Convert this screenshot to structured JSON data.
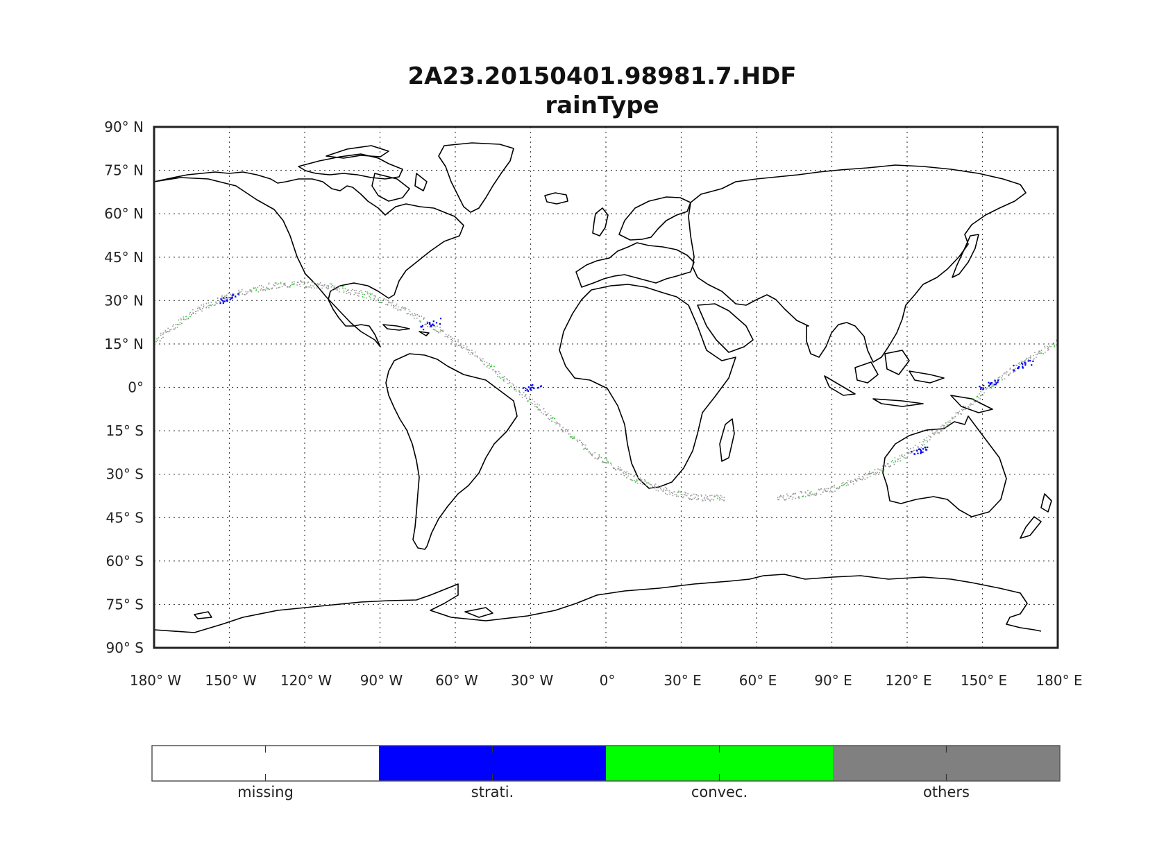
{
  "title": "2A23.20150401.98981.7.HDF",
  "subtitle": "rainType",
  "lat_ticks": [
    "90° N",
    "75° N",
    "60° N",
    "45° N",
    "30° N",
    "15° N",
    "0°",
    "15° S",
    "30° S",
    "45° S",
    "60° S",
    "75° S",
    "90° S"
  ],
  "lon_ticks": [
    "180° W",
    "150° W",
    "120° W",
    "90° W",
    "60° W",
    "30° W",
    "0°",
    "30° E",
    "60° E",
    "90° E",
    "120° E",
    "150° E",
    "180° E"
  ],
  "colorbar": {
    "categories": [
      {
        "label": "missing",
        "color": "#ffffff"
      },
      {
        "label": "strati.",
        "color": "#0000ff"
      },
      {
        "label": "convec.",
        "color": "#00ff00"
      },
      {
        "label": "others",
        "color": "#808080"
      }
    ]
  },
  "map": {
    "projection": "equirectangular",
    "lon_range": [
      -180,
      180
    ],
    "lat_range": [
      -90,
      90
    ],
    "grid": "dotted",
    "swath_track": [
      [
        -180,
        16
      ],
      [
        -165,
        26
      ],
      [
        -150,
        32
      ],
      [
        -135,
        35
      ],
      [
        -122,
        36
      ],
      [
        -110,
        35
      ],
      [
        -95,
        32
      ],
      [
        -80,
        27
      ],
      [
        -65,
        19
      ],
      [
        -50,
        10
      ],
      [
        -35,
        -1
      ],
      [
        -20,
        -12
      ],
      [
        -5,
        -23
      ],
      [
        10,
        -31
      ],
      [
        25,
        -36
      ],
      [
        37,
        -38
      ],
      [
        70,
        -38
      ],
      [
        90,
        -35
      ],
      [
        110,
        -28
      ],
      [
        125,
        -20
      ],
      [
        140,
        -9
      ],
      [
        155,
        2
      ],
      [
        168,
        10
      ],
      [
        180,
        16
      ]
    ],
    "swath_gap": [
      47,
      68
    ],
    "strat_clusters": [
      [
        -150,
        31
      ],
      [
        -70,
        22
      ],
      [
        -30,
        0
      ],
      [
        124,
        -22
      ],
      [
        166,
        8
      ],
      [
        152,
        1
      ]
    ]
  }
}
